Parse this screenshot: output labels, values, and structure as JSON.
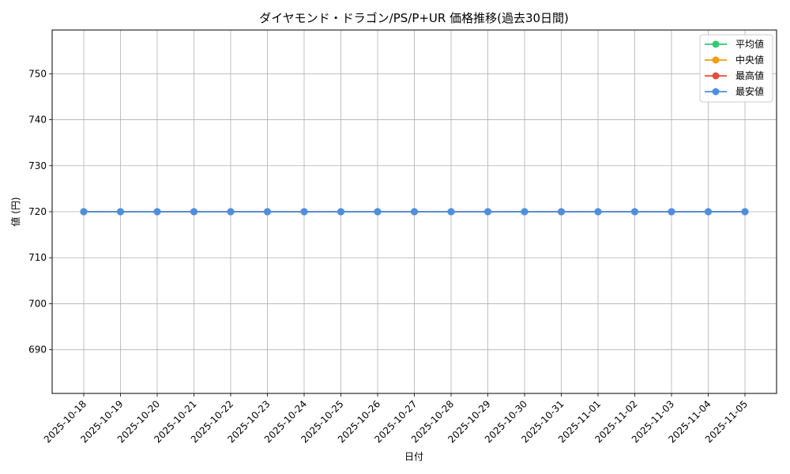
{
  "chart_data": {
    "type": "line",
    "title": "ダイヤモンド・ドラゴン/PS/P+UR 価格推移(過去30日間)",
    "xlabel": "日付",
    "ylabel": "値 (円)",
    "categories": [
      "2025-10-18",
      "2025-10-19",
      "2025-10-20",
      "2025-10-21",
      "2025-10-22",
      "2025-10-23",
      "2025-10-24",
      "2025-10-25",
      "2025-10-26",
      "2025-10-27",
      "2025-10-28",
      "2025-10-29",
      "2025-10-30",
      "2025-10-31",
      "2025-11-01",
      "2025-11-02",
      "2025-11-03",
      "2025-11-04",
      "2025-11-05"
    ],
    "ylim": [
      680.5,
      759.5
    ],
    "yticks": [
      690,
      700,
      710,
      720,
      730,
      740,
      750
    ],
    "grid": true,
    "legend_position": "top-right",
    "series": [
      {
        "name": "平均値",
        "color": "#2ecc71",
        "values": [
          720,
          720,
          720,
          720,
          720,
          720,
          720,
          720,
          720,
          720,
          720,
          720,
          720,
          720,
          720,
          720,
          720,
          720,
          720
        ]
      },
      {
        "name": "中央値",
        "color": "#f39c12",
        "values": [
          720,
          720,
          720,
          720,
          720,
          720,
          720,
          720,
          720,
          720,
          720,
          720,
          720,
          720,
          720,
          720,
          720,
          720,
          720
        ]
      },
      {
        "name": "最高値",
        "color": "#e74c3c",
        "values": [
          720,
          720,
          720,
          720,
          720,
          720,
          720,
          720,
          720,
          720,
          720,
          720,
          720,
          720,
          720,
          720,
          720,
          720,
          720
        ]
      },
      {
        "name": "最安値",
        "color": "#4a90e2",
        "values": [
          720,
          720,
          720,
          720,
          720,
          720,
          720,
          720,
          720,
          720,
          720,
          720,
          720,
          720,
          720,
          720,
          720,
          720,
          720
        ]
      }
    ]
  }
}
